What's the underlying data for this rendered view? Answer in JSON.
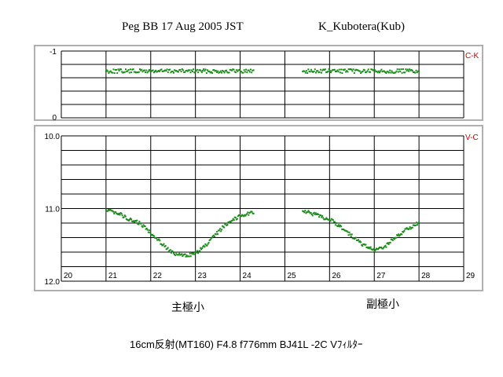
{
  "header": {
    "title": "Peg BB 17 Aug 2005 JST",
    "observer": "K_Kubotera(Kub)"
  },
  "footer": {
    "annotation_primary": "主極小",
    "annotation_secondary": "副極小",
    "instrument": "16cm反射(MT160) F4.8 f776mm  BJ41L  -2C  Vﾌｨﾙﾀｰ"
  },
  "chart_data": [
    {
      "type": "scatter",
      "panel": "top",
      "series_label": "C-K",
      "ylim": [
        -1,
        0
      ],
      "y_ticks": [
        "-1",
        "0"
      ],
      "y_inverted": true,
      "xlim": [
        20,
        29
      ],
      "grid": true,
      "color": "#1a8a1a",
      "segments": [
        {
          "x_start": 21.0,
          "x_end": 24.3,
          "y": -0.7,
          "scatter": 0.03
        },
        {
          "x_start": 25.4,
          "x_end": 28.0,
          "y": -0.7,
          "scatter": 0.03
        }
      ]
    },
    {
      "type": "scatter",
      "panel": "bottom",
      "series_label": "V-C",
      "ylim": [
        10.0,
        12.0
      ],
      "y_ticks": [
        "10.0",
        "11.0",
        "12.0"
      ],
      "y_inverted": true,
      "xlim": [
        20,
        29
      ],
      "x_ticks": [
        "20",
        "21",
        "22",
        "23",
        "24",
        "25",
        "26",
        "27",
        "28",
        "29"
      ],
      "grid": true,
      "color": "#1a8a1a",
      "points": [
        [
          21.0,
          11.03
        ],
        [
          21.25,
          11.05
        ],
        [
          21.5,
          11.15
        ],
        [
          21.75,
          11.2
        ],
        [
          22.0,
          11.33
        ],
        [
          22.25,
          11.48
        ],
        [
          22.5,
          11.62
        ],
        [
          22.75,
          11.65
        ],
        [
          23.0,
          11.62
        ],
        [
          23.25,
          11.5
        ],
        [
          23.5,
          11.33
        ],
        [
          23.75,
          11.18
        ],
        [
          24.0,
          11.1
        ],
        [
          24.3,
          11.05
        ],
        [
          25.4,
          11.03
        ],
        [
          25.75,
          11.1
        ],
        [
          26.0,
          11.15
        ],
        [
          26.25,
          11.25
        ],
        [
          26.5,
          11.38
        ],
        [
          26.75,
          11.5
        ],
        [
          27.0,
          11.58
        ],
        [
          27.25,
          11.52
        ],
        [
          27.5,
          11.38
        ],
        [
          27.75,
          11.28
        ],
        [
          28.0,
          11.2
        ]
      ]
    }
  ]
}
